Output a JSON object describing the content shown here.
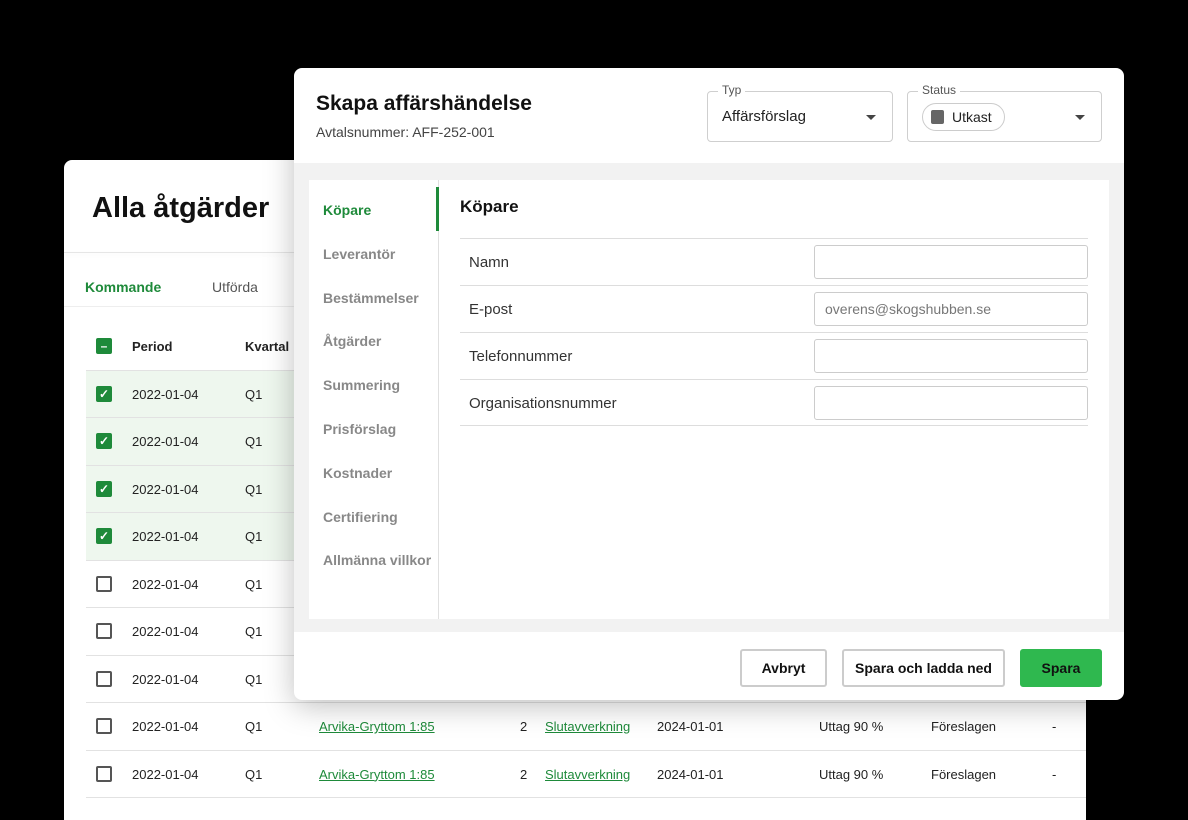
{
  "back": {
    "title": "Alla åtgärder",
    "tabs": [
      "Kommande",
      "Utförda"
    ],
    "headers": {
      "period": "Period",
      "kvartal": "Kvartal"
    },
    "rows": [
      {
        "checked": true,
        "period": "2022-01-04",
        "kvartal": "Q1"
      },
      {
        "checked": true,
        "period": "2022-01-04",
        "kvartal": "Q1"
      },
      {
        "checked": true,
        "period": "2022-01-04",
        "kvartal": "Q1"
      },
      {
        "checked": true,
        "period": "2022-01-04",
        "kvartal": "Q1"
      },
      {
        "checked": false,
        "period": "2022-01-04",
        "kvartal": "Q1"
      },
      {
        "checked": false,
        "period": "2022-01-04",
        "kvartal": "Q1"
      },
      {
        "checked": false,
        "period": "2022-01-04",
        "kvartal": "Q1"
      },
      {
        "checked": false,
        "period": "2022-01-04",
        "kvartal": "Q1",
        "fastighet": "Arvika-Gryttom 1:85",
        "nr": "2",
        "atgard": "Slutavverkning",
        "datum": "2024-01-01",
        "uttag": "Uttag 90 %",
        "status": "Föreslagen",
        "extra": "-"
      },
      {
        "checked": false,
        "period": "2022-01-04",
        "kvartal": "Q1",
        "fastighet": "Arvika-Gryttom 1:85",
        "nr": "2",
        "atgard": "Slutavverkning",
        "datum": "2024-01-01",
        "uttag": "Uttag 90 %",
        "status": "Föreslagen",
        "extra": "-"
      }
    ]
  },
  "modal": {
    "title": "Skapa affärshändelse",
    "subtitle": "Avtalsnummer: AFF-252-001",
    "typ": {
      "label": "Typ",
      "value": "Affärsförslag"
    },
    "status": {
      "label": "Status",
      "value": "Utkast",
      "icon": "document-icon"
    },
    "nav": [
      "Köpare",
      "Leverantör",
      "Bestämmelser",
      "Åtgärder",
      "Summering",
      "Prisförslag",
      "Kostnader",
      "Certifiering",
      "Allmänna villkor"
    ],
    "section": "Köpare",
    "fields": [
      {
        "label": "Namn",
        "value": "",
        "placeholder": ""
      },
      {
        "label": "E-post",
        "value": "",
        "placeholder": "overens@skogshubben.se"
      },
      {
        "label": "Telefonnummer",
        "value": "",
        "placeholder": ""
      },
      {
        "label": "Organisationsnummer",
        "value": "",
        "placeholder": ""
      }
    ],
    "buttons": {
      "cancel": "Avbryt",
      "save_download": "Spara och ladda ned",
      "save": "Spara"
    }
  },
  "colors": {
    "accent": "#1e8a3a",
    "primary_button": "#2fb84f"
  }
}
